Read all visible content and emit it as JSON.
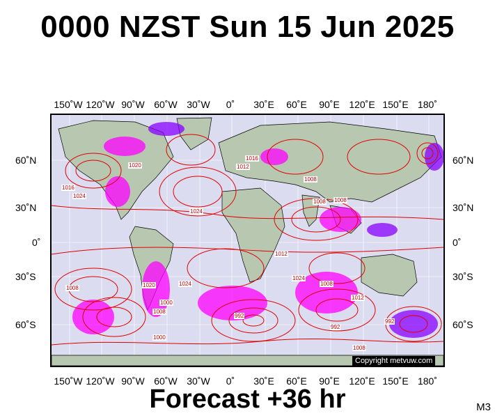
{
  "title": "0000 NZST Sun 15 Jun 2025",
  "subtitle": "Forecast +36 hr",
  "model_code": "M3",
  "copyright": "Copyright metvuw.com",
  "colors": {
    "isobar": "#e00000",
    "ocean": "#dcdcf0",
    "land": "#b8c8b0",
    "rain_magenta": "#ff00ff",
    "rain_purple": "#8800ff"
  },
  "longitude_labels": [
    "150˚W",
    "120˚W",
    "90˚W",
    "60˚W",
    "30˚W",
    "0˚",
    "30˚E",
    "60˚E",
    "90˚E",
    "120˚E",
    "150˚E",
    "180˚"
  ],
  "latitude_labels": [
    "60˚N",
    "30˚N",
    "0˚",
    "30˚S",
    "60˚S"
  ],
  "pressure_labels": [
    "1016",
    "1024",
    "1020",
    "1024",
    "1008",
    "1012",
    "1016",
    "1008",
    "1008",
    "1008",
    "1024",
    "1020",
    "1012",
    "1008",
    "1000",
    "1024",
    "1012",
    "1008",
    "992",
    "992",
    "992",
    "1008",
    "1000"
  ]
}
